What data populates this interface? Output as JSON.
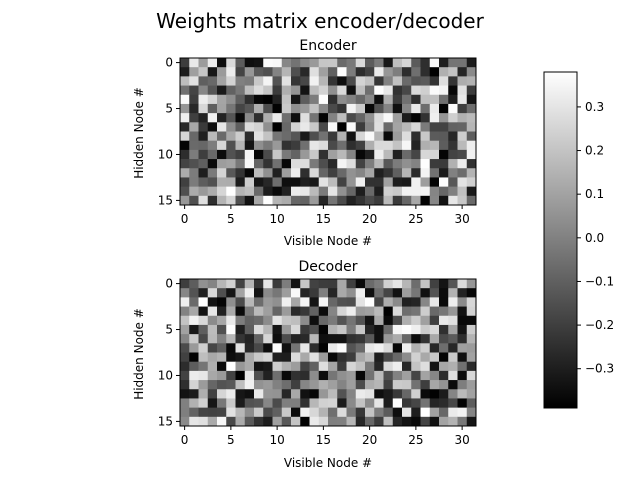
{
  "chart_data": {
    "type": "heatmap",
    "title": "Weights matrix encoder/decoder",
    "colormap": "gray",
    "vmin": -0.39,
    "vmax": 0.38,
    "colorbar_ticks": [
      "-0.3",
      "-0.2",
      "-0.1",
      "0.0",
      "0.1",
      "0.2",
      "0.3"
    ],
    "colorbar_tick_values": [
      -0.3,
      -0.2,
      -0.1,
      0.0,
      0.1,
      0.2,
      0.3
    ],
    "panels": [
      {
        "title": "Encoder",
        "xlabel": "Visible Node #",
        "ylabel": "Hidden Node #",
        "xticks": [
          "0",
          "5",
          "10",
          "15",
          "20",
          "25",
          "30"
        ],
        "yticks": [
          "0",
          "5",
          "10",
          "15"
        ],
        "rows": 16,
        "cols": 32,
        "seed": 7
      },
      {
        "title": "Decoder",
        "xlabel": "Visible Node #",
        "ylabel": "Hidden Node #",
        "xticks": [
          "0",
          "5",
          "10",
          "15",
          "20",
          "25",
          "30"
        ],
        "yticks": [
          "0",
          "5",
          "10",
          "15"
        ],
        "rows": 16,
        "cols": 32,
        "seed": 23
      }
    ]
  }
}
